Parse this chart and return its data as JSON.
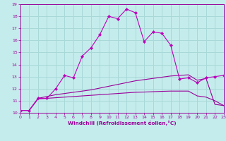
{
  "xlabel": "Windchill (Refroidissement éolien,°C)",
  "bg_color": "#c5ecec",
  "grid_color": "#a8d8d8",
  "line_color": "#990099",
  "line_color2": "#bb00bb",
  "x_min": 0,
  "x_max": 23,
  "y_min": 10,
  "y_max": 19,
  "yticks": [
    10,
    11,
    12,
    13,
    14,
    15,
    16,
    17,
    18,
    19
  ],
  "xticks": [
    0,
    1,
    2,
    3,
    4,
    5,
    6,
    7,
    8,
    9,
    10,
    11,
    12,
    13,
    14,
    15,
    16,
    17,
    18,
    19,
    20,
    21,
    22,
    23
  ],
  "line1_x": [
    0,
    1,
    2,
    3,
    4,
    5,
    6,
    7,
    8,
    9,
    10,
    11,
    12,
    13,
    14,
    15,
    16,
    17,
    18,
    19,
    20,
    21,
    22,
    23
  ],
  "line1_y": [
    10.2,
    10.2,
    11.2,
    11.2,
    12.0,
    13.1,
    12.9,
    14.7,
    15.4,
    16.5,
    18.0,
    17.8,
    18.6,
    18.3,
    15.9,
    16.7,
    16.6,
    15.6,
    12.8,
    12.9,
    12.5,
    12.9,
    13.0,
    13.1
  ],
  "line2_x": [
    0,
    1,
    2,
    3,
    4,
    5,
    6,
    7,
    8,
    9,
    10,
    11,
    12,
    13,
    14,
    15,
    16,
    17,
    18,
    19,
    20,
    21,
    22,
    23
  ],
  "line2_y": [
    10.2,
    10.2,
    11.2,
    11.35,
    11.5,
    11.6,
    11.7,
    11.8,
    11.9,
    12.05,
    12.2,
    12.35,
    12.5,
    12.65,
    12.75,
    12.85,
    12.95,
    13.05,
    13.1,
    13.15,
    12.7,
    12.85,
    10.7,
    10.6
  ],
  "line3_x": [
    0,
    1,
    2,
    3,
    4,
    5,
    6,
    7,
    8,
    9,
    10,
    11,
    12,
    13,
    14,
    15,
    16,
    17,
    18,
    19,
    20,
    21,
    22,
    23
  ],
  "line3_y": [
    10.2,
    10.2,
    11.15,
    11.2,
    11.25,
    11.3,
    11.35,
    11.4,
    11.45,
    11.5,
    11.55,
    11.6,
    11.65,
    11.7,
    11.72,
    11.75,
    11.78,
    11.8,
    11.8,
    11.8,
    11.4,
    11.3,
    11.0,
    10.6
  ]
}
